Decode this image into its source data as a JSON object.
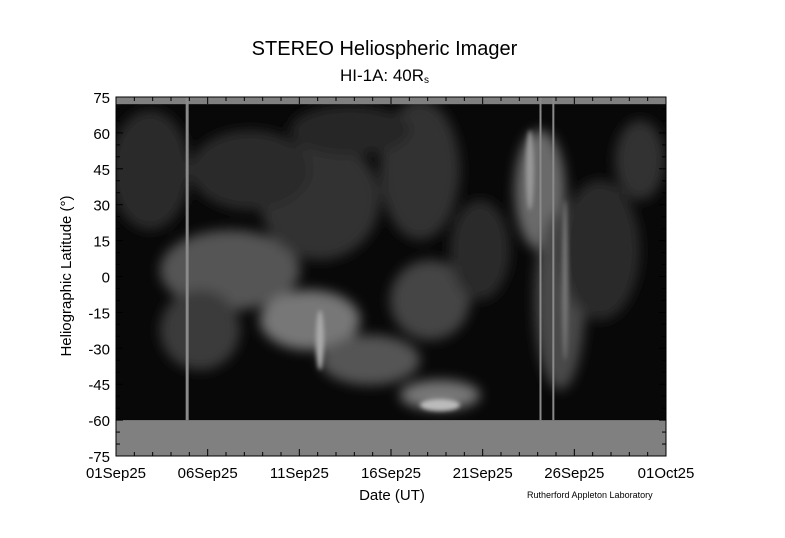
{
  "chart_data": {
    "type": "heatmap",
    "title": "STEREO Heliospheric Imager",
    "subtitle_main": "HI-1A: 40R",
    "subtitle_sub": "s",
    "xlabel": "Date (UT)",
    "ylabel": "Heliographic Latitude (°)",
    "xlim": [
      "01Sep25",
      "01Oct25"
    ],
    "ylim": [
      -75,
      75
    ],
    "x_tick_labels": [
      "01Sep25",
      "06Sep25",
      "11Sep25",
      "16Sep25",
      "21Sep25",
      "26Sep25",
      "01Oct25"
    ],
    "y_ticks": [
      75,
      60,
      45,
      30,
      15,
      0,
      -15,
      -30,
      -45,
      -60,
      -75
    ],
    "colormap": "greyscale",
    "no_data_color": "#808080",
    "no_data_latitude_below": -60,
    "grid": false,
    "legend": "none"
  },
  "credit": "Rutherford Appleton Laboratory"
}
